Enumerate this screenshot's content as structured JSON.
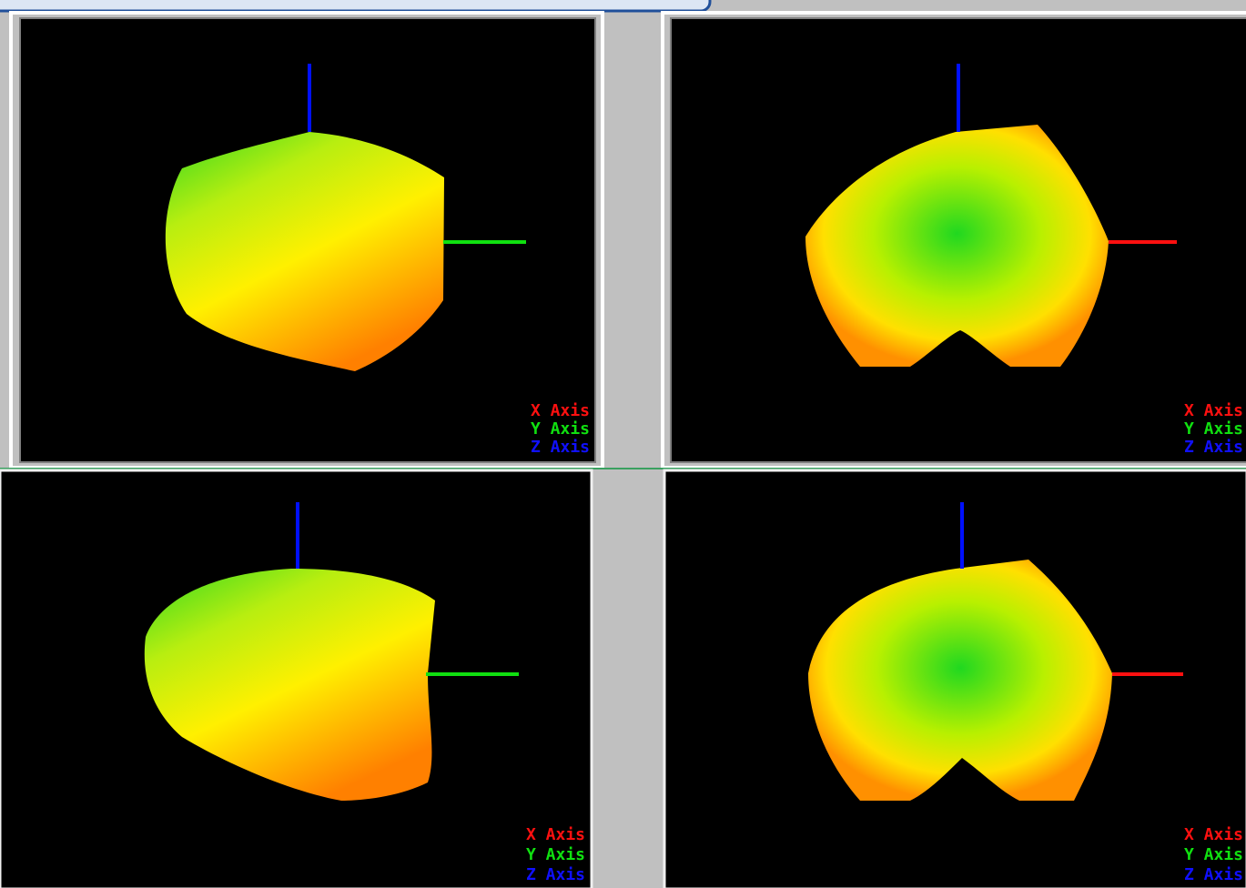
{
  "viewports": [
    {
      "legend": [
        "X Axis",
        "Y Axis",
        "Z Axis"
      ]
    },
    {
      "legend": [
        "X Axis",
        "Y Axis",
        "Z Axis"
      ]
    },
    {
      "legend": [
        "X Axis",
        "Y Axis",
        "Z Axis"
      ]
    },
    {
      "legend": [
        "X Axis",
        "Y Axis",
        "Z Axis"
      ]
    }
  ]
}
